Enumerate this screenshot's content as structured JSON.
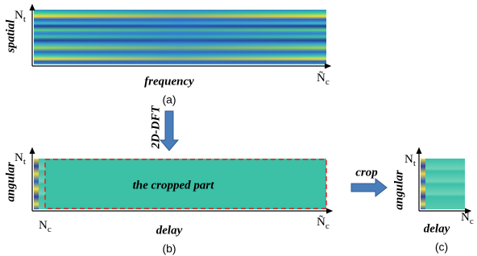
{
  "panel_a": {
    "y_label": {
      "base": "N",
      "sub": "t"
    },
    "y_axis_title": "spatial",
    "x_axis_title": "frequency",
    "x_label": {
      "base": "Ñ",
      "sub": "c"
    },
    "caption": "(a)"
  },
  "transform": "2D-DFT",
  "panel_b": {
    "y_label": {
      "base": "N",
      "sub": "t"
    },
    "y_axis_title": "angular",
    "region_label": "the cropped part",
    "x_start_label": {
      "base": "N",
      "sub": "c"
    },
    "x_axis_title": "delay",
    "x_label": {
      "base": "Ñ",
      "sub": "c"
    },
    "caption": "(b)"
  },
  "operation": "crop",
  "panel_c": {
    "y_label": {
      "base": "N",
      "sub": "t"
    },
    "y_axis_title": "angular",
    "x_axis_title": "delay",
    "x_label": {
      "base": "N",
      "sub": "c"
    },
    "caption": "(c)"
  }
}
